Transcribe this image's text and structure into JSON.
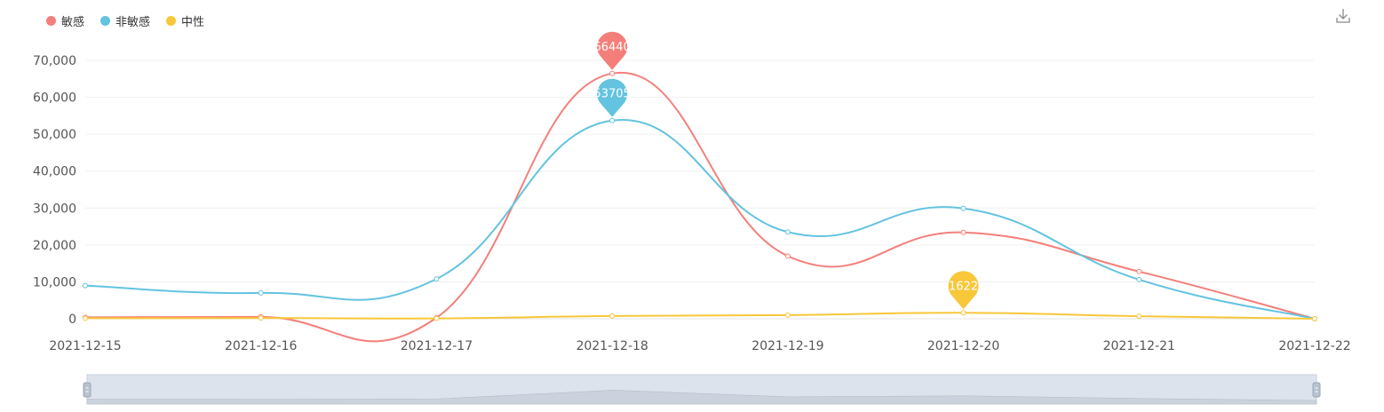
{
  "toolbox": {
    "download_icon": "download-icon"
  },
  "colors": {
    "series": [
      "#f47f7a",
      "#63c3e0",
      "#f8c73a"
    ],
    "grid": "#f0f0f0",
    "axis_text": "#555555",
    "zoom_fill": "#dde3ec"
  },
  "chart_data": {
    "type": "line",
    "smooth": true,
    "x": [
      "2021-12-15",
      "2021-12-16",
      "2021-12-17",
      "2021-12-18",
      "2021-12-19",
      "2021-12-20",
      "2021-12-21",
      "2021-12-22"
    ],
    "series": [
      {
        "name": "敏感",
        "color": "#f47f7a",
        "values": [
          400,
          500,
          300,
          66440,
          17000,
          23400,
          12800,
          0
        ]
      },
      {
        "name": "非敏感",
        "color": "#63c3e0",
        "values": [
          9000,
          7000,
          10800,
          53705,
          23500,
          29900,
          10600,
          0
        ]
      },
      {
        "name": "中性",
        "color": "#f8c73a",
        "values": [
          150,
          200,
          100,
          750,
          1000,
          1622,
          700,
          0
        ]
      }
    ],
    "yticks": [
      "0",
      "10,000",
      "20,000",
      "30,000",
      "40,000",
      "50,000",
      "60,000",
      "70,000"
    ],
    "ylim": [
      0,
      70000
    ],
    "grid": true,
    "legend": "top-left",
    "markpoints": [
      {
        "series": 0,
        "index": 3,
        "label": "66440"
      },
      {
        "series": 1,
        "index": 3,
        "label": "53705"
      },
      {
        "series": 2,
        "index": 5,
        "label": "1622"
      }
    ],
    "datazoom": {
      "start": 0,
      "end": 100
    }
  }
}
